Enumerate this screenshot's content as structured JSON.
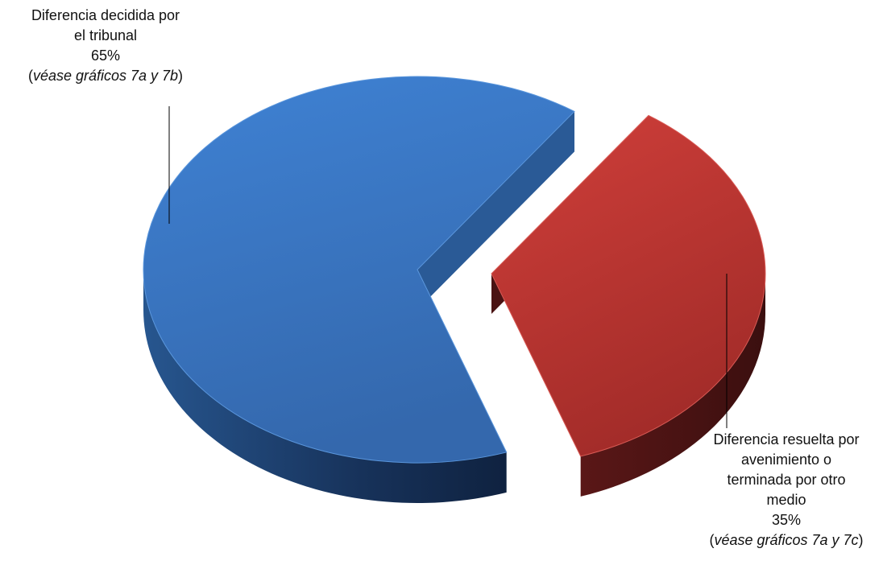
{
  "chart_data": {
    "type": "pie",
    "style": "3d-exploded",
    "slices": [
      {
        "label_lines": [
          "Diferencia decidida por",
          "el tribunal"
        ],
        "value": 65,
        "value_text": "65%",
        "ref_open": "(",
        "ref_italic": "véase gráficos 7a y 7b",
        "ref_close": ")",
        "color": "#3d7dcc",
        "color_dark": "#1a3b66"
      },
      {
        "label_lines": [
          "Diferencia resuelta por",
          "avenimiento o",
          "terminada por otro",
          "medio"
        ],
        "value": 35,
        "value_text": "35%",
        "ref_open": "(",
        "ref_italic": "véase gráficos 7a y 7c",
        "ref_close": ")",
        "color": "#c23a36",
        "color_dark": "#4a1414"
      }
    ]
  }
}
